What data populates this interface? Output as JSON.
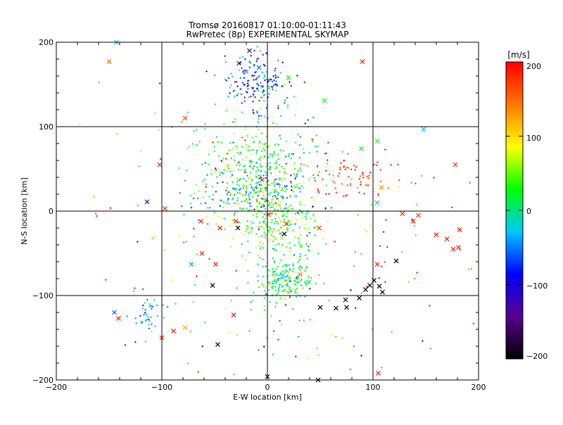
{
  "chart_data": {
    "type": "scatter",
    "title": "Tromsø 20160817 01:10:00-01:11:43",
    "subtitle": "RwPretec (8p) EXPERIMENTAL SKYMAP",
    "xlabel": "E-W location [km]",
    "ylabel": "N-S location [km]",
    "xlim": [
      -200,
      200
    ],
    "ylim": [
      -200,
      200
    ],
    "xticks": [
      "−200",
      "−100",
      "0",
      "100",
      "200"
    ],
    "yticks": [
      "−200",
      "−100",
      "0",
      "100",
      "200"
    ],
    "grid_lines_km": [
      -100,
      0,
      100
    ],
    "colorbar": {
      "label": "[m/s]",
      "range": [
        -200,
        200
      ],
      "ticks": [
        "200",
        "100",
        "0",
        "−100",
        "−200"
      ],
      "colormap": [
        "#000000",
        "#5a0090",
        "#0000ff",
        "#00c8ff",
        "#00ff00",
        "#ffff00",
        "#ff7800",
        "#ff0000"
      ]
    },
    "marker_types": [
      "dot",
      "cross"
    ],
    "crosses": [
      {
        "x": -150,
        "y": 177,
        "v": 150
      },
      {
        "x": 90,
        "y": 177,
        "v": 190
      },
      {
        "x": -143,
        "y": 200,
        "v": -20
      },
      {
        "x": -17,
        "y": 190,
        "v": -170
      },
      {
        "x": -27,
        "y": 175,
        "v": -160
      },
      {
        "x": -8,
        "y": 170,
        "v": -60
      },
      {
        "x": -20,
        "y": 165,
        "v": -40
      },
      {
        "x": 20,
        "y": 158,
        "v": 30
      },
      {
        "x": 54,
        "y": 131,
        "v": 20
      },
      {
        "x": 148,
        "y": 97,
        "v": -30
      },
      {
        "x": 104,
        "y": 83,
        "v": 40
      },
      {
        "x": 89,
        "y": 74,
        "v": 20
      },
      {
        "x": 178,
        "y": 55,
        "v": 180
      },
      {
        "x": -102,
        "y": 55,
        "v": 190
      },
      {
        "x": -78,
        "y": 110,
        "v": 170
      },
      {
        "x": -114,
        "y": 11,
        "v": -150
      },
      {
        "x": -97,
        "y": 3,
        "v": 180
      },
      {
        "x": 108,
        "y": 28,
        "v": 130
      },
      {
        "x": 104,
        "y": 10,
        "v": -30
      },
      {
        "x": -5,
        "y": 37,
        "v": 190
      },
      {
        "x": 143,
        "y": -5,
        "v": 180
      },
      {
        "x": 128,
        "y": -3,
        "v": 180
      },
      {
        "x": 138,
        "y": -12,
        "v": 190
      },
      {
        "x": 160,
        "y": -28,
        "v": 190
      },
      {
        "x": 182,
        "y": -22,
        "v": 190
      },
      {
        "x": 170,
        "y": -33,
        "v": 190
      },
      {
        "x": 176,
        "y": -45,
        "v": 190
      },
      {
        "x": 181,
        "y": -43,
        "v": 190
      },
      {
        "x": -63,
        "y": -12,
        "v": 190
      },
      {
        "x": -45,
        "y": -20,
        "v": 190
      },
      {
        "x": -30,
        "y": -12,
        "v": 180
      },
      {
        "x": -28,
        "y": -20,
        "v": -200
      },
      {
        "x": -62,
        "y": -50,
        "v": 190
      },
      {
        "x": -72,
        "y": -63,
        "v": -40
      },
      {
        "x": -49,
        "y": -63,
        "v": 190
      },
      {
        "x": -52,
        "y": -88,
        "v": -200
      },
      {
        "x": 16,
        "y": -27,
        "v": -200
      },
      {
        "x": 1,
        "y": -4,
        "v": 190
      },
      {
        "x": 18,
        "y": -15,
        "v": 190
      },
      {
        "x": 49,
        "y": -20,
        "v": 180
      },
      {
        "x": 104,
        "y": -63,
        "v": 190
      },
      {
        "x": 122,
        "y": -59,
        "v": -200
      },
      {
        "x": 101,
        "y": -82,
        "v": -200
      },
      {
        "x": 106,
        "y": -89,
        "v": -200
      },
      {
        "x": 109,
        "y": -96,
        "v": -200
      },
      {
        "x": 97,
        "y": -88,
        "v": -200
      },
      {
        "x": 93,
        "y": -93,
        "v": -200
      },
      {
        "x": 87,
        "y": -103,
        "v": -200
      },
      {
        "x": 74,
        "y": -105,
        "v": -200
      },
      {
        "x": 75,
        "y": -114,
        "v": -200
      },
      {
        "x": 65,
        "y": -115,
        "v": -200
      },
      {
        "x": 50,
        "y": -114,
        "v": -200
      },
      {
        "x": 31,
        "y": -75,
        "v": 150
      },
      {
        "x": 39,
        "y": -84,
        "v": 20
      },
      {
        "x": -32,
        "y": -123,
        "v": 190
      },
      {
        "x": -145,
        "y": -120,
        "v": -60
      },
      {
        "x": -141,
        "y": -127,
        "v": 190
      },
      {
        "x": -100,
        "y": -150,
        "v": 190
      },
      {
        "x": -89,
        "y": -142,
        "v": 190
      },
      {
        "x": -78,
        "y": -138,
        "v": 120
      },
      {
        "x": -47,
        "y": -158,
        "v": -200
      },
      {
        "x": 0,
        "y": -196,
        "v": -200
      },
      {
        "x": 105,
        "y": -192,
        "v": 190
      },
      {
        "x": 48,
        "y": -200,
        "v": -200
      }
    ],
    "clusters": [
      {
        "name": "north-cluster",
        "cx": -10,
        "cy": 152,
        "sx": 14,
        "sy": 17,
        "n": 170,
        "vmean": -60,
        "vsd": 45
      },
      {
        "name": "central-north",
        "cx": -5,
        "cy": 58,
        "sx": 30,
        "sy": 28,
        "n": 300,
        "vmean": 20,
        "vsd": 40
      },
      {
        "name": "central",
        "cx": -10,
        "cy": 22,
        "sx": 28,
        "sy": 18,
        "n": 260,
        "vmean": -10,
        "vsd": 60
      },
      {
        "name": "central-south",
        "cx": 10,
        "cy": -20,
        "sx": 20,
        "sy": 20,
        "n": 230,
        "vmean": 40,
        "vsd": 50
      },
      {
        "name": "lower-cluster",
        "cx": 15,
        "cy": -82,
        "sx": 14,
        "sy": 12,
        "n": 190,
        "vmean": 10,
        "vsd": 30
      },
      {
        "name": "southwest-cluster",
        "cx": -115,
        "cy": -125,
        "sx": 7,
        "sy": 12,
        "n": 40,
        "vmean": -30,
        "vsd": 25
      },
      {
        "name": "east-red",
        "cx": 75,
        "cy": 40,
        "sx": 22,
        "sy": 18,
        "n": 70,
        "vmean": 180,
        "vsd": 15
      },
      {
        "name": "west-scatter",
        "cx": -80,
        "cy": 20,
        "sx": 55,
        "sy": 70,
        "n": 60,
        "vmean": 100,
        "vsd": 120
      },
      {
        "name": "east-scatter",
        "cx": 90,
        "cy": -50,
        "sx": 50,
        "sy": 70,
        "n": 70,
        "vmean": 80,
        "vsd": 110
      },
      {
        "name": "south-scatter",
        "cx": 20,
        "cy": -150,
        "sx": 60,
        "sy": 30,
        "n": 40,
        "vmean": 60,
        "vsd": 130
      }
    ]
  }
}
